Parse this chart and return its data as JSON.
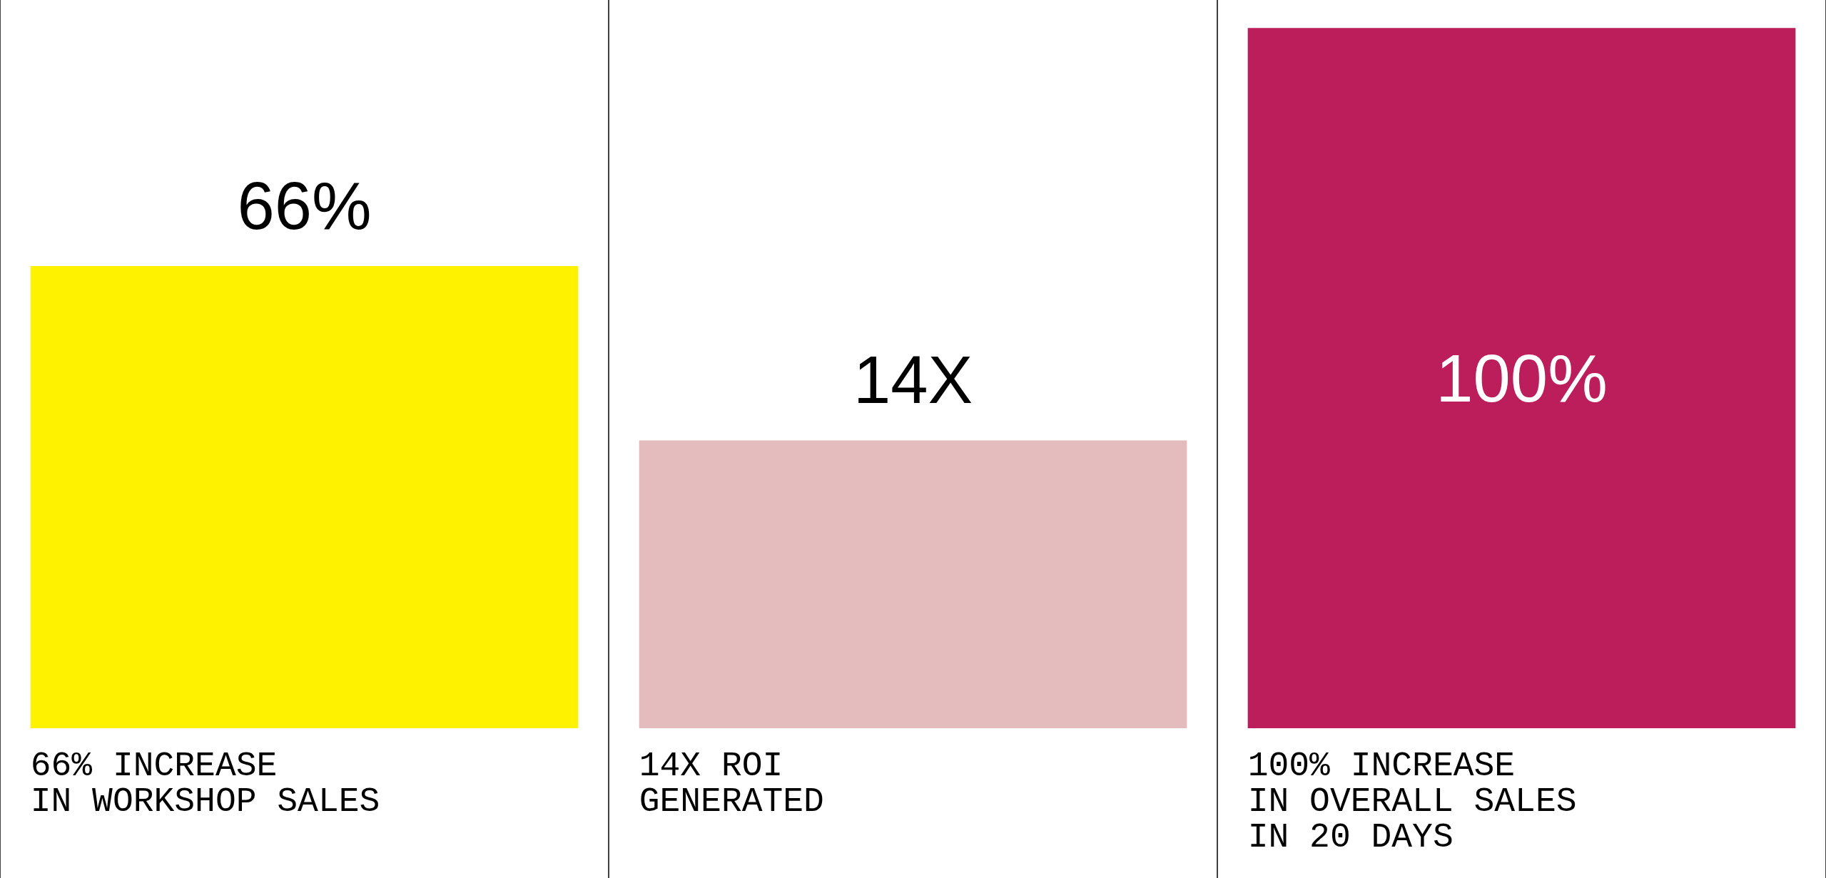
{
  "chart_data": {
    "type": "bar",
    "categories": [
      "66% INCREASE\nIN WORKSHOP SALES",
      "14X ROI\nGENERATED",
      "100% INCREASE\nIN OVERALL SALES\nIN 20 DAYS"
    ],
    "series": [
      {
        "values": [
          66,
          null,
          100
        ],
        "colors": [
          "#fff200",
          null,
          "#bc1e5c"
        ],
        "value_labels": [
          "66%",
          null,
          "100%"
        ]
      },
      {
        "axis": "y2",
        "values": [
          null,
          14,
          null
        ],
        "colors": [
          null,
          "#e4bcbd",
          null
        ],
        "value_labels": [
          null,
          "14X",
          null
        ]
      }
    ],
    "tick_labels": "x",
    "grid": "x"
  }
}
